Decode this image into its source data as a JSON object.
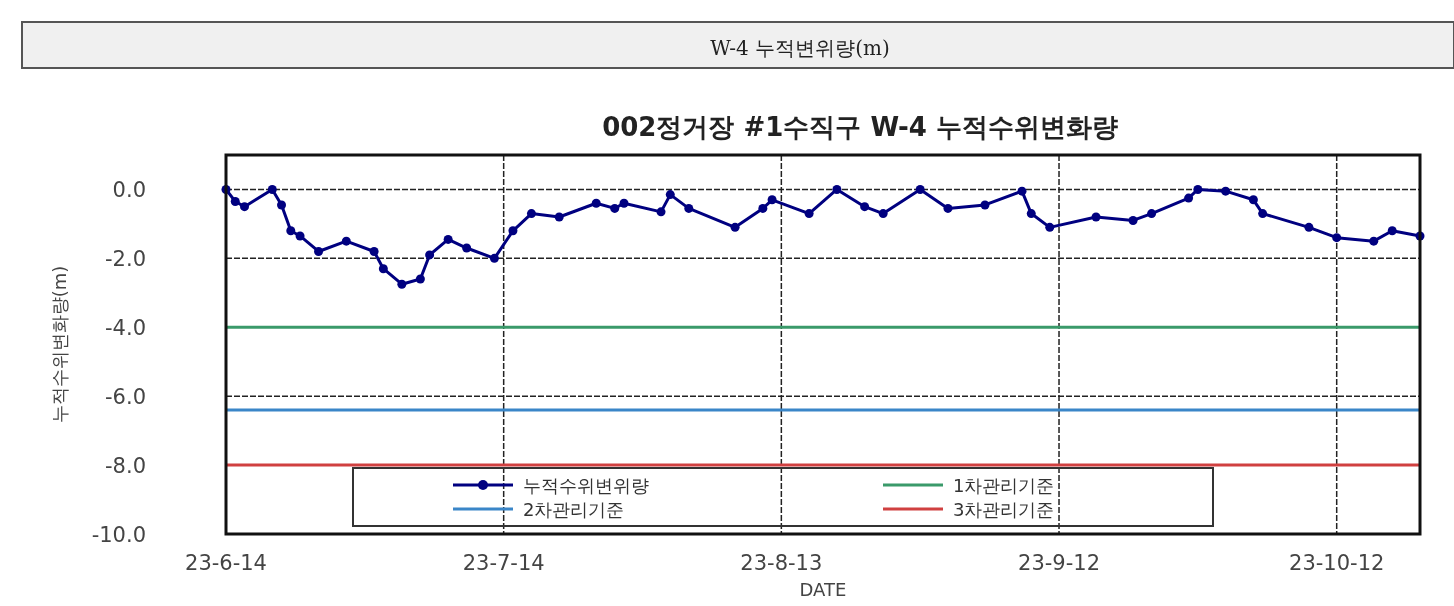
{
  "chart_data": {
    "type": "line",
    "title": "W-4 누적변위량(m)",
    "subtitle": "002정거장 #1수직구 W-4 누적수위변화량",
    "xlabel": "DATE",
    "ylabel": "누적수위변화량(m)",
    "x": [
      "--06-14",
      "--06-15",
      "--06-16",
      "--06-19",
      "--06-20",
      "--06-21",
      "--06-22",
      "--06-24",
      "--06-27",
      "--06-30",
      "--07-01",
      "--07-03",
      "--07-05",
      "--07-06",
      "--07-08",
      "--07-10",
      "--07-13",
      "--07-15",
      "--07-17",
      "--07-20",
      "--07-24",
      "--07-26",
      "--07-27",
      "--07-31",
      "--08-01",
      "--08-03",
      "--08-08",
      "--08-11",
      "--08-12",
      "--08-16",
      "--08-19",
      "--08-22",
      "--08-24",
      "--08-28",
      "--08-31",
      "--09-04",
      "--09-08",
      "--09-09",
      "--09-11",
      "--09-16",
      "--09-20",
      "--09-22",
      "--09-26",
      "--09-27",
      "--09-30",
      "--10-03",
      "--10-04",
      "--10-09",
      "--10-12",
      "--10-16",
      "--10-18",
      "--10-21"
    ],
    "series": [
      {
        "name": "누적수위변위량",
        "color": "#000080",
        "values": [
          0.0,
          -0.35,
          -0.5,
          0.0,
          -0.45,
          -1.2,
          -1.35,
          -1.8,
          -1.5,
          -1.8,
          -2.3,
          -2.75,
          -2.6,
          -1.9,
          -1.45,
          -1.7,
          -2.0,
          -1.2,
          -0.7,
          -0.8,
          -0.4,
          -0.55,
          -0.4,
          -0.65,
          -0.15,
          -0.55,
          -1.1,
          -0.55,
          -0.3,
          -0.7,
          0.0,
          -0.5,
          -0.7,
          0.0,
          -0.55,
          -0.45,
          -0.05,
          -0.7,
          -1.1,
          -0.8,
          -0.9,
          -0.7,
          -0.25,
          0.0,
          -0.05,
          -0.3,
          -0.7,
          -1.1,
          -1.4,
          -1.5,
          -1.2,
          -1.35
        ]
      }
    ],
    "xlim": [
      "--06-14",
      "--10-21"
    ],
    "xticks": [
      {
        "value": "--06-14",
        "label": "23-6-14"
      },
      {
        "value": "--07-14",
        "label": "23-7-14"
      },
      {
        "value": "--08-13",
        "label": "23-8-13"
      },
      {
        "value": "--09-12",
        "label": "23-9-12"
      },
      {
        "value": "--10-12",
        "label": "23-10-12"
      }
    ],
    "ylim": [
      -10,
      1
    ],
    "yticks": [
      {
        "value": 0,
        "label": "0.0"
      },
      {
        "value": -2,
        "label": "-2.0"
      },
      {
        "value": -4,
        "label": "-4.0"
      },
      {
        "value": -6,
        "label": "-6.0"
      },
      {
        "value": -8,
        "label": "-8.0"
      },
      {
        "value": -10,
        "label": "-10.0"
      }
    ],
    "ref_lines": [
      {
        "axis": "y",
        "value": -4,
        "label": "1차관리기준",
        "color": "#3a9a6a"
      },
      {
        "axis": "y",
        "value": -6.4,
        "label": "2차관리기준",
        "color": "#3a86c8"
      },
      {
        "axis": "y",
        "value": -8,
        "label": "3차관리기준",
        "color": "#d04040"
      }
    ],
    "grid": true,
    "legend": "bottom",
    "marker": "circle",
    "line_style": "solid"
  }
}
